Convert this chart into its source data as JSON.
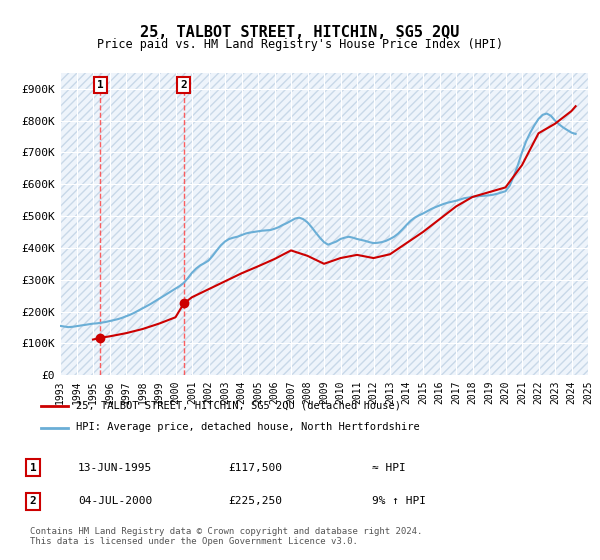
{
  "title": "25, TALBOT STREET, HITCHIN, SG5 2QU",
  "subtitle": "Price paid vs. HM Land Registry's House Price Index (HPI)",
  "ylabel_ticks": [
    "£0",
    "£100K",
    "£200K",
    "£300K",
    "£400K",
    "£500K",
    "£600K",
    "£700K",
    "£800K",
    "£900K"
  ],
  "ytick_values": [
    0,
    100000,
    200000,
    300000,
    400000,
    500000,
    600000,
    700000,
    800000,
    900000
  ],
  "ylim": [
    0,
    950000
  ],
  "background_color": "#ffffff",
  "plot_bg_color": "#eef4fb",
  "hatch_color": "#c8d8e8",
  "grid_color": "#ffffff",
  "price_paid": [
    {
      "date": 1995.45,
      "price": 117500,
      "label": "1"
    },
    {
      "date": 2000.5,
      "price": 225250,
      "label": "2"
    }
  ],
  "hpi_line_color": "#6aaed6",
  "price_line_color": "#cc0000",
  "marker_color": "#cc0000",
  "annotation_box_color": "#cc0000",
  "vline_color": "#ff4444",
  "legend_border_color": "#aaaaaa",
  "legend_entry1": "25, TALBOT STREET, HITCHIN, SG5 2QU (detached house)",
  "legend_entry2": "HPI: Average price, detached house, North Hertfordshire",
  "table_rows": [
    {
      "num": "1",
      "date": "13-JUN-1995",
      "price": "£117,500",
      "hpi": "≈ HPI"
    },
    {
      "num": "2",
      "date": "04-JUL-2000",
      "price": "£225,250",
      "hpi": "9% ↑ HPI"
    }
  ],
  "footer": "Contains HM Land Registry data © Crown copyright and database right 2024.\nThis data is licensed under the Open Government Licence v3.0.",
  "hpi_data_x": [
    1993.0,
    1993.25,
    1993.5,
    1993.75,
    1994.0,
    1994.25,
    1994.5,
    1994.75,
    1995.0,
    1995.25,
    1995.5,
    1995.75,
    1996.0,
    1996.25,
    1996.5,
    1996.75,
    1997.0,
    1997.25,
    1997.5,
    1997.75,
    1998.0,
    1998.25,
    1998.5,
    1998.75,
    1999.0,
    1999.25,
    1999.5,
    1999.75,
    2000.0,
    2000.25,
    2000.5,
    2000.75,
    2001.0,
    2001.25,
    2001.5,
    2001.75,
    2002.0,
    2002.25,
    2002.5,
    2002.75,
    2003.0,
    2003.25,
    2003.5,
    2003.75,
    2004.0,
    2004.25,
    2004.5,
    2004.75,
    2005.0,
    2005.25,
    2005.5,
    2005.75,
    2006.0,
    2006.25,
    2006.5,
    2006.75,
    2007.0,
    2007.25,
    2007.5,
    2007.75,
    2008.0,
    2008.25,
    2008.5,
    2008.75,
    2009.0,
    2009.25,
    2009.5,
    2009.75,
    2010.0,
    2010.25,
    2010.5,
    2010.75,
    2011.0,
    2011.25,
    2011.5,
    2011.75,
    2012.0,
    2012.25,
    2012.5,
    2012.75,
    2013.0,
    2013.25,
    2013.5,
    2013.75,
    2014.0,
    2014.25,
    2014.5,
    2014.75,
    2015.0,
    2015.25,
    2015.5,
    2015.75,
    2016.0,
    2016.25,
    2016.5,
    2016.75,
    2017.0,
    2017.25,
    2017.5,
    2017.75,
    2018.0,
    2018.25,
    2018.5,
    2018.75,
    2019.0,
    2019.25,
    2019.5,
    2019.75,
    2020.0,
    2020.25,
    2020.5,
    2020.75,
    2021.0,
    2021.25,
    2021.5,
    2021.75,
    2022.0,
    2022.25,
    2022.5,
    2022.75,
    2023.0,
    2023.25,
    2023.5,
    2023.75,
    2024.0,
    2024.25
  ],
  "hpi_data_y": [
    155000,
    153000,
    151000,
    152000,
    154000,
    156000,
    158000,
    160000,
    162000,
    163000,
    165000,
    167000,
    170000,
    173000,
    176000,
    180000,
    185000,
    190000,
    196000,
    203000,
    210000,
    217000,
    224000,
    232000,
    240000,
    248000,
    256000,
    264000,
    272000,
    280000,
    290000,
    305000,
    322000,
    335000,
    345000,
    352000,
    360000,
    375000,
    392000,
    408000,
    420000,
    428000,
    432000,
    435000,
    440000,
    445000,
    448000,
    450000,
    452000,
    454000,
    455000,
    456000,
    460000,
    465000,
    472000,
    478000,
    485000,
    492000,
    495000,
    490000,
    480000,
    465000,
    448000,
    432000,
    418000,
    410000,
    415000,
    420000,
    428000,
    432000,
    435000,
    432000,
    428000,
    425000,
    422000,
    418000,
    415000,
    416000,
    418000,
    422000,
    428000,
    435000,
    445000,
    458000,
    472000,
    485000,
    495000,
    502000,
    508000,
    515000,
    522000,
    528000,
    533000,
    538000,
    542000,
    545000,
    548000,
    552000,
    556000,
    558000,
    560000,
    562000,
    563000,
    564000,
    565000,
    567000,
    570000,
    574000,
    578000,
    595000,
    625000,
    660000,
    700000,
    735000,
    762000,
    785000,
    805000,
    818000,
    822000,
    815000,
    800000,
    788000,
    778000,
    770000,
    762000,
    758000
  ],
  "price_line_x": [
    1995.0,
    1995.45,
    1996.0,
    1997.0,
    1998.0,
    1999.0,
    2000.0,
    2000.5,
    2001.0,
    2002.0,
    2003.0,
    2004.0,
    2005.0,
    2006.0,
    2007.0,
    2008.0,
    2009.0,
    2010.0,
    2011.0,
    2012.0,
    2013.0,
    2014.0,
    2015.0,
    2016.0,
    2017.0,
    2018.0,
    2019.0,
    2020.0,
    2021.0,
    2022.0,
    2023.0,
    2024.0,
    2024.25
  ],
  "price_line_y": [
    112000,
    117500,
    122000,
    132000,
    145000,
    162000,
    182000,
    225250,
    245000,
    270000,
    295000,
    320000,
    342000,
    365000,
    392000,
    375000,
    350000,
    368000,
    378000,
    368000,
    380000,
    415000,
    450000,
    490000,
    530000,
    560000,
    575000,
    590000,
    660000,
    760000,
    790000,
    830000,
    845000
  ],
  "xlim": [
    1993.0,
    2024.5
  ],
  "xtick_years": [
    1993,
    1994,
    1995,
    1996,
    1997,
    1998,
    1999,
    2000,
    2001,
    2002,
    2003,
    2004,
    2005,
    2006,
    2007,
    2008,
    2009,
    2010,
    2011,
    2012,
    2013,
    2014,
    2015,
    2016,
    2017,
    2018,
    2019,
    2020,
    2021,
    2022,
    2023,
    2024,
    2025
  ]
}
